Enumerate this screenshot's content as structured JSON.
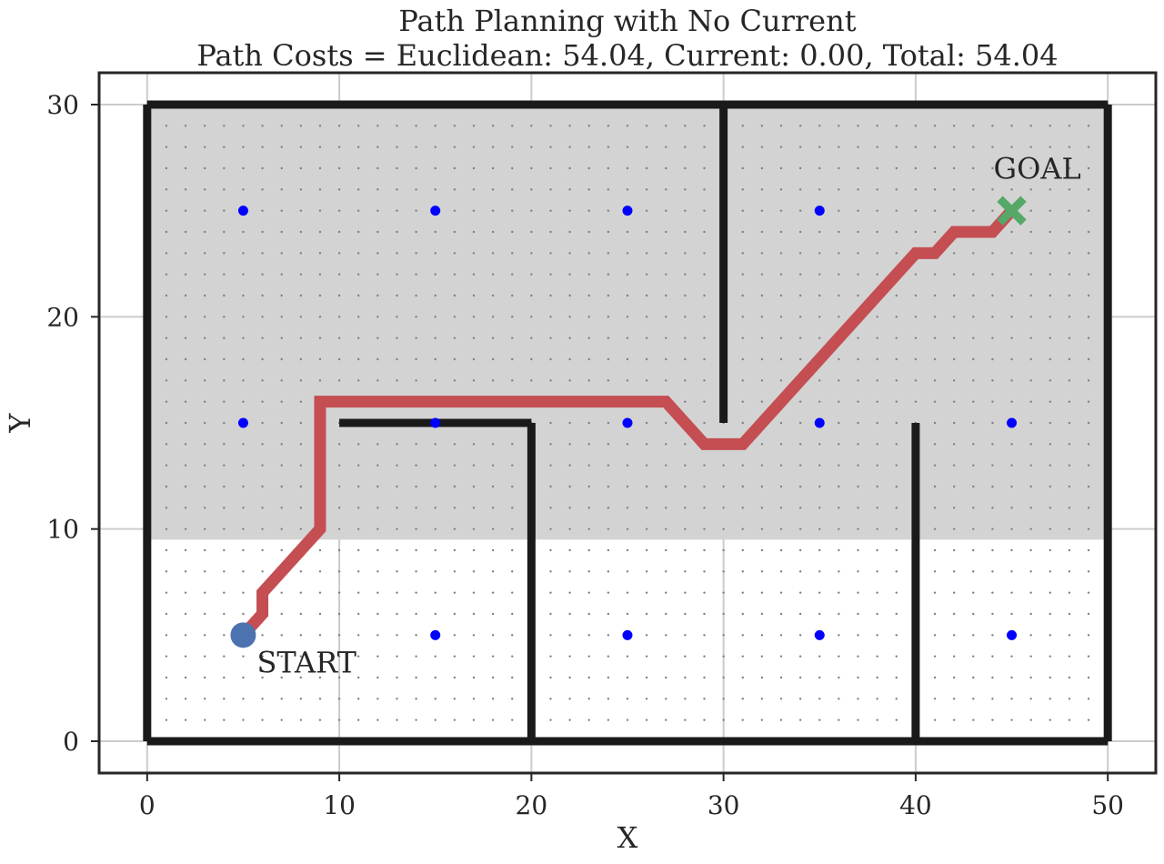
{
  "chart_data": {
    "type": "scatter",
    "title": "Path Planning with No Current",
    "subtitle": "Path Costs = Euclidean: 54.04, Current: 0.00, Total: 54.04",
    "xlabel": "X",
    "ylabel": "Y",
    "xlim": [
      -2.5,
      52.5
    ],
    "ylim": [
      -1.5,
      31.5
    ],
    "xticks": [
      0,
      10,
      20,
      30,
      40,
      50
    ],
    "yticks": [
      0,
      10,
      20,
      30
    ],
    "grid": true,
    "shaded_region": {
      "x": [
        0,
        50
      ],
      "y": [
        9.5,
        30
      ],
      "color": "#d3d3d3"
    },
    "grid_dots": {
      "x_range": [
        0,
        50
      ],
      "y_range": [
        0,
        30
      ],
      "step": 1,
      "color": "#808080"
    },
    "walls": [
      {
        "x": [
          0,
          50
        ],
        "y": [
          0,
          0
        ]
      },
      {
        "x": [
          0,
          50
        ],
        "y": [
          30,
          30
        ]
      },
      {
        "x": [
          0,
          0
        ],
        "y": [
          0,
          30
        ]
      },
      {
        "x": [
          50,
          50
        ],
        "y": [
          0,
          30
        ]
      },
      {
        "x": [
          30,
          30
        ],
        "y": [
          15,
          30
        ]
      },
      {
        "x": [
          10,
          20
        ],
        "y": [
          15,
          15
        ]
      },
      {
        "x": [
          20,
          20
        ],
        "y": [
          0,
          15
        ]
      },
      {
        "x": [
          40,
          40
        ],
        "y": [
          0,
          15
        ]
      }
    ],
    "wall_color": "#1a1a1a",
    "centers": {
      "color": "#0000ff",
      "points": [
        [
          5,
          25
        ],
        [
          15,
          25
        ],
        [
          25,
          25
        ],
        [
          35,
          25
        ],
        [
          5,
          15
        ],
        [
          15,
          15
        ],
        [
          25,
          15
        ],
        [
          35,
          15
        ],
        [
          45,
          15
        ],
        [
          15,
          5
        ],
        [
          25,
          5
        ],
        [
          35,
          5
        ],
        [
          45,
          5
        ]
      ]
    },
    "path": {
      "color": "#c44e52",
      "x": [
        5,
        6,
        6,
        9,
        9,
        27,
        29,
        31,
        40,
        41,
        42,
        44,
        45
      ],
      "y": [
        5,
        6,
        7,
        10,
        16,
        16,
        14,
        14,
        23,
        23,
        24,
        24,
        25
      ]
    },
    "start": {
      "x": 5,
      "y": 5,
      "label": "START",
      "color": "#4c72b0"
    },
    "goal": {
      "x": 45,
      "y": 25,
      "label": "GOAL",
      "color": "#55a868"
    }
  }
}
